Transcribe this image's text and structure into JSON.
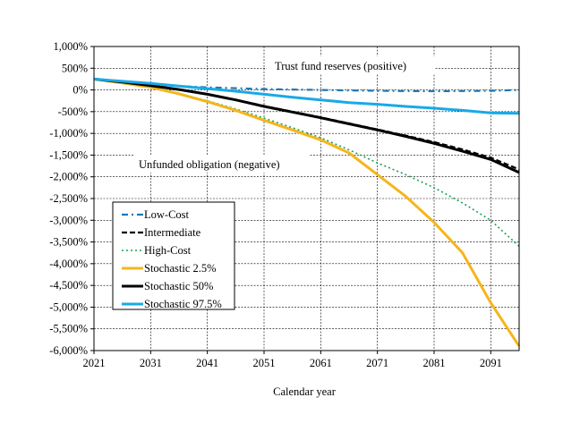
{
  "chart_data": {
    "type": "line",
    "title": "",
    "xlabel": "Calendar year",
    "ylabel": "",
    "xlim": [
      2021,
      2096
    ],
    "ylim": [
      -6000,
      1000
    ],
    "grid": true,
    "x_ticks": [
      2021,
      2031,
      2041,
      2051,
      2061,
      2071,
      2081,
      2091
    ],
    "x_tick_labels": [
      "2021",
      "2031",
      "2041",
      "2051",
      "2061",
      "2071",
      "2081",
      "2091"
    ],
    "y_ticks": [
      1000,
      500,
      0,
      -500,
      -1000,
      -1500,
      -2000,
      -2500,
      -3000,
      -3500,
      -4000,
      -4500,
      -5000,
      -5500,
      -6000
    ],
    "y_tick_labels": [
      "1,000%",
      "500%",
      "0%",
      "-500%",
      "-1,000%",
      "-1,500%",
      "-2,000%",
      "-2,500%",
      "-3,000%",
      "-3,500%",
      "-4,000%",
      "-4,500%",
      "-5,000%",
      "-5,500%",
      "-6,000%"
    ],
    "annotations": [
      "Trust fund reserves (positive)",
      "Unfunded obligation (negative)"
    ],
    "legend_position": "left-middle",
    "x": [
      2021,
      2026,
      2031,
      2036,
      2041,
      2046,
      2051,
      2056,
      2061,
      2066,
      2071,
      2076,
      2081,
      2086,
      2091,
      2096
    ],
    "series": [
      {
        "name": "Low-Cost",
        "color": "#1f77b4",
        "style": "dashdot",
        "values": [
          250,
          190,
          130,
          90,
          60,
          40,
          20,
          10,
          0,
          -10,
          -20,
          -25,
          -30,
          -25,
          -20,
          0
        ]
      },
      {
        "name": "Intermediate",
        "color": "#000000",
        "style": "dashed",
        "values": [
          250,
          180,
          100,
          10,
          -100,
          -230,
          -370,
          -500,
          -630,
          -770,
          -910,
          -1050,
          -1200,
          -1370,
          -1560,
          -1830
        ]
      },
      {
        "name": "High-Cost",
        "color": "#1aa050",
        "style": "dotted",
        "values": [
          250,
          160,
          60,
          -80,
          -250,
          -440,
          -650,
          -870,
          -1100,
          -1380,
          -1680,
          -1950,
          -2250,
          -2600,
          -3000,
          -3600
        ]
      },
      {
        "name": "Stochastic 2.5%",
        "color": "#f5b51c",
        "style": "solid",
        "values": [
          250,
          160,
          60,
          -90,
          -270,
          -470,
          -700,
          -920,
          -1150,
          -1450,
          -1950,
          -2450,
          -3050,
          -3750,
          -4900,
          -5900
        ]
      },
      {
        "name": "Stochastic 50%",
        "color": "#000000",
        "style": "solid",
        "values": [
          250,
          180,
          100,
          10,
          -100,
          -230,
          -380,
          -510,
          -640,
          -780,
          -920,
          -1070,
          -1230,
          -1410,
          -1600,
          -1900
        ]
      },
      {
        "name": "Stochastic 97.5%",
        "color": "#1aa9e6",
        "style": "solid",
        "values": [
          250,
          200,
          150,
          90,
          30,
          -30,
          -100,
          -170,
          -230,
          -290,
          -330,
          -380,
          -420,
          -470,
          -530,
          -540
        ]
      }
    ]
  }
}
